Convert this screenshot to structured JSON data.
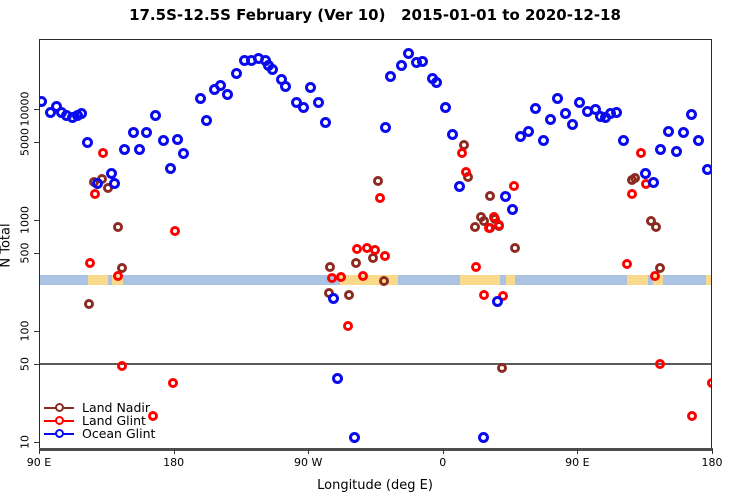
{
  "title": "17.5S-12.5S February (Ver 10)   2015-01-01 to 2020-12-18",
  "chart_data": {
    "type": "scatter",
    "title": "17.5S-12.5S February (Ver 10)   2015-01-01 to 2020-12-18",
    "xlabel": "Longitude (deg E)",
    "ylabel": "N Total",
    "x_axis": {
      "note": "longitude wraps eastward from 90E across 450 degrees",
      "domain_deg": [
        0,
        450
      ],
      "ticks": [
        {
          "deg": 0,
          "label": "90 E"
        },
        {
          "deg": 90,
          "label": "180"
        },
        {
          "deg": 180,
          "label": "90 W"
        },
        {
          "deg": 270,
          "label": "0"
        },
        {
          "deg": 360,
          "label": "90 E"
        },
        {
          "deg": 450,
          "label": "180"
        }
      ]
    },
    "y_axis": {
      "scale": "log10",
      "domain": [
        8.6,
        43000
      ],
      "ticks": [
        10,
        50,
        100,
        500,
        1000,
        5000,
        10000
      ]
    },
    "reference_line_N": 50,
    "map_band": {
      "N_range": [
        258,
        322
      ],
      "ocean_color": "#aac3e2",
      "land_color": "#fbd98b",
      "land_segments_deg": [
        [
          33,
          46
        ],
        [
          49,
          56
        ],
        [
          201,
          240
        ],
        [
          281.5,
          308.5
        ],
        [
          312,
          318.5
        ],
        [
          393,
          407.5
        ],
        [
          410.5,
          417
        ],
        [
          446,
          449
        ]
      ]
    },
    "series": [
      {
        "name": "Land Nadir",
        "color": "#8B2B21",
        "size": 10,
        "points": [
          [
            33.5,
            175
          ],
          [
            36.5,
            2200
          ],
          [
            42.0,
            2340
          ],
          [
            46.0,
            1950
          ],
          [
            52.7,
            870
          ],
          [
            55.7,
            372
          ],
          [
            193.6,
            219
          ],
          [
            194.7,
            380
          ],
          [
            207.0,
            211
          ],
          [
            211.9,
            409
          ],
          [
            223.1,
            450
          ],
          [
            226.6,
            2240
          ],
          [
            230.4,
            282
          ],
          [
            283.9,
            4740
          ],
          [
            286.9,
            2440
          ],
          [
            291.7,
            870
          ],
          [
            295.4,
            1060
          ],
          [
            297.3,
            976
          ],
          [
            301.8,
            1630
          ],
          [
            301.8,
            840
          ],
          [
            305.2,
            1030
          ],
          [
            307.4,
            880
          ],
          [
            309.6,
            46
          ],
          [
            318.1,
            560
          ],
          [
            396.6,
            2280
          ],
          [
            398.8,
            2390
          ],
          [
            408.9,
            970
          ],
          [
            412.3,
            870
          ],
          [
            415.1,
            369
          ]
        ]
      },
      {
        "name": "Land Glint",
        "color": "#FF0000",
        "size": 10,
        "points": [
          [
            34.1,
            410
          ],
          [
            37.7,
            1720
          ],
          [
            43.0,
            4030
          ],
          [
            52.7,
            313
          ],
          [
            55.3,
            48
          ],
          [
            76.5,
            17
          ],
          [
            89.5,
            34
          ],
          [
            91.0,
            790
          ],
          [
            195.9,
            302
          ],
          [
            202.1,
            308
          ],
          [
            206.6,
            110
          ],
          [
            212.6,
            544
          ],
          [
            216.4,
            313
          ],
          [
            219.3,
            555
          ],
          [
            224.4,
            535
          ],
          [
            227.7,
            1570
          ],
          [
            231.5,
            475
          ],
          [
            282.8,
            4000
          ],
          [
            285.5,
            2690
          ],
          [
            292.4,
            380
          ],
          [
            297.3,
            211
          ],
          [
            300.7,
            850
          ],
          [
            304.5,
            1070
          ],
          [
            307.4,
            901
          ],
          [
            310.3,
            207
          ],
          [
            317.4,
            2030
          ],
          [
            393.2,
            400
          ],
          [
            396.6,
            1700
          ],
          [
            402.6,
            4000
          ],
          [
            406.2,
            2130
          ],
          [
            411.8,
            313
          ],
          [
            415.1,
            50
          ],
          [
            436.3,
            17
          ],
          [
            449.7,
            34
          ]
        ]
      },
      {
        "name": "Ocean Glint",
        "color": "#0A0AEE",
        "size": 11,
        "points": [
          [
            1.8,
            11600
          ],
          [
            7.8,
            9340
          ],
          [
            11.8,
            10500
          ],
          [
            15.2,
            9340
          ],
          [
            18.5,
            8760
          ],
          [
            22.3,
            8330
          ],
          [
            25.6,
            8760
          ],
          [
            28.6,
            9150
          ],
          [
            32.3,
            4990
          ],
          [
            38.8,
            2140
          ],
          [
            48.2,
            2640
          ],
          [
            50.2,
            2150
          ],
          [
            57.5,
            4350
          ],
          [
            63.1,
            6200
          ],
          [
            67.1,
            4350
          ],
          [
            71.6,
            6150
          ],
          [
            77.6,
            8820
          ],
          [
            83.2,
            5180
          ],
          [
            88.1,
            2930
          ],
          [
            92.8,
            5290
          ],
          [
            96.6,
            4000
          ],
          [
            107.7,
            12400
          ],
          [
            112.2,
            7900
          ],
          [
            117.1,
            15000
          ],
          [
            121.1,
            16200
          ],
          [
            126.3,
            13500
          ],
          [
            132.3,
            21100
          ],
          [
            137.4,
            27600
          ],
          [
            141.9,
            27100
          ],
          [
            146.8,
            28700
          ],
          [
            151.2,
            27100
          ],
          [
            153.5,
            24500
          ],
          [
            156.1,
            22900
          ],
          [
            161.9,
            18500
          ],
          [
            165.1,
            15900
          ],
          [
            172.4,
            11400
          ],
          [
            176.9,
            10300
          ],
          [
            181.8,
            15700
          ],
          [
            186.9,
            11500
          ],
          [
            191.4,
            7560
          ],
          [
            197.0,
            196
          ],
          [
            199.9,
            37
          ],
          [
            211.0,
            11
          ],
          [
            231.5,
            6870
          ],
          [
            234.9,
            19500
          ],
          [
            242.2,
            24700
          ],
          [
            247.1,
            31400
          ],
          [
            252.7,
            26100
          ],
          [
            256.1,
            26600
          ],
          [
            262.8,
            19000
          ],
          [
            266.1,
            17400
          ],
          [
            271.7,
            10300
          ],
          [
            276.8,
            5930
          ],
          [
            281.2,
            1990
          ],
          [
            297.3,
            11
          ],
          [
            306.3,
            186
          ],
          [
            311.8,
            1630
          ],
          [
            316.3,
            1240
          ],
          [
            321.9,
            5630
          ],
          [
            327.0,
            6240
          ],
          [
            331.9,
            10100
          ],
          [
            337.5,
            5180
          ],
          [
            342.0,
            8060
          ],
          [
            346.9,
            12400
          ],
          [
            352.0,
            9150
          ],
          [
            356.5,
            7310
          ],
          [
            361.6,
            11500
          ],
          [
            366.9,
            9480
          ],
          [
            372.1,
            10000
          ],
          [
            375.4,
            8540
          ],
          [
            378.8,
            8430
          ],
          [
            382.1,
            9150
          ],
          [
            386.1,
            9280
          ],
          [
            391.0,
            5180
          ],
          [
            405.5,
            2640
          ],
          [
            410.7,
            2180
          ],
          [
            415.6,
            4350
          ],
          [
            421.1,
            6240
          ],
          [
            426.1,
            4180
          ],
          [
            431.2,
            6110
          ],
          [
            436.1,
            8950
          ],
          [
            441.2,
            5180
          ],
          [
            447.2,
            2860
          ]
        ]
      }
    ],
    "legend": {
      "position": "bottom-left",
      "entries": [
        "Land Nadir",
        "Land Glint",
        "Ocean Glint"
      ]
    }
  }
}
